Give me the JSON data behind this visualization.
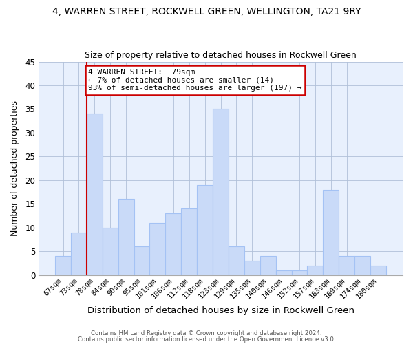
{
  "title": "4, WARREN STREET, ROCKWELL GREEN, WELLINGTON, TA21 9RY",
  "subtitle": "Size of property relative to detached houses in Rockwell Green",
  "xlabel": "Distribution of detached houses by size in Rockwell Green",
  "ylabel": "Number of detached properties",
  "footer_line1": "Contains HM Land Registry data © Crown copyright and database right 2024.",
  "footer_line2": "Contains public sector information licensed under the Open Government Licence v3.0.",
  "categories": [
    "67sqm",
    "73sqm",
    "78sqm",
    "84sqm",
    "90sqm",
    "95sqm",
    "101sqm",
    "106sqm",
    "112sqm",
    "118sqm",
    "123sqm",
    "129sqm",
    "135sqm",
    "140sqm",
    "146sqm",
    "152sqm",
    "157sqm",
    "163sqm",
    "169sqm",
    "174sqm",
    "180sqm"
  ],
  "values": [
    4,
    9,
    34,
    10,
    16,
    6,
    11,
    13,
    14,
    19,
    35,
    6,
    3,
    4,
    1,
    1,
    2,
    18,
    4,
    4,
    2
  ],
  "bar_color": "#c9daf8",
  "bar_edge_color": "#a4c2f4",
  "background_color": "#ffffff",
  "plot_bg_color": "#e8f0fd",
  "grid_color": "#b0c0d8",
  "annotation_box_text": "4 WARREN STREET:  79sqm\n← 7% of detached houses are smaller (14)\n93% of semi-detached houses are larger (197) →",
  "annotation_box_color": "#ffffff",
  "annotation_box_edge_color": "#cc0000",
  "red_line_category_index": 2,
  "ylim": [
    0,
    45
  ],
  "yticks": [
    0,
    5,
    10,
    15,
    20,
    25,
    30,
    35,
    40,
    45
  ]
}
